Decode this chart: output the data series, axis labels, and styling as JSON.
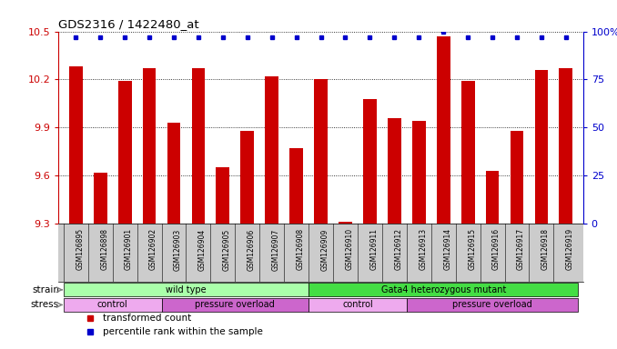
{
  "title": "GDS2316 / 1422480_at",
  "samples": [
    "GSM126895",
    "GSM126898",
    "GSM126901",
    "GSM126902",
    "GSM126903",
    "GSM126904",
    "GSM126905",
    "GSM126906",
    "GSM126907",
    "GSM126908",
    "GSM126909",
    "GSM126910",
    "GSM126911",
    "GSM126912",
    "GSM126913",
    "GSM126914",
    "GSM126915",
    "GSM126916",
    "GSM126917",
    "GSM126918",
    "GSM126919"
  ],
  "transformed_count": [
    10.28,
    9.62,
    10.19,
    10.27,
    9.93,
    10.27,
    9.65,
    9.88,
    10.22,
    9.77,
    10.2,
    9.31,
    10.08,
    9.96,
    9.94,
    10.47,
    10.19,
    9.63,
    9.88,
    10.26,
    10.27
  ],
  "percentile_rank": [
    97,
    97,
    97,
    97,
    97,
    97,
    97,
    97,
    97,
    97,
    97,
    97,
    97,
    97,
    97,
    100,
    97,
    97,
    97,
    97,
    97
  ],
  "ylim_left": [
    9.3,
    10.5
  ],
  "ylim_right": [
    0,
    100
  ],
  "yticks_left": [
    9.3,
    9.6,
    9.9,
    10.2,
    10.5
  ],
  "yticks_right": [
    0,
    25,
    50,
    75,
    100
  ],
  "bar_color": "#cc0000",
  "dot_color": "#0000cc",
  "ticker_bg_color": "#cccccc",
  "strain_groups": [
    {
      "label": "wild type",
      "start": 0,
      "end": 10,
      "color": "#aaffaa"
    },
    {
      "label": "Gata4 heterozygous mutant",
      "start": 10,
      "end": 21,
      "color": "#44dd44"
    }
  ],
  "stress_groups": [
    {
      "label": "control",
      "start": 0,
      "end": 4,
      "color": "#eeaaee"
    },
    {
      "label": "pressure overload",
      "start": 4,
      "end": 10,
      "color": "#cc66cc"
    },
    {
      "label": "control",
      "start": 10,
      "end": 14,
      "color": "#eeaaee"
    },
    {
      "label": "pressure overload",
      "start": 14,
      "end": 21,
      "color": "#cc66cc"
    }
  ],
  "legend_items": [
    {
      "label": "transformed count",
      "color": "#cc0000",
      "marker": "s"
    },
    {
      "label": "percentile rank within the sample",
      "color": "#0000cc",
      "marker": "s"
    }
  ],
  "background_color": "#ffffff"
}
